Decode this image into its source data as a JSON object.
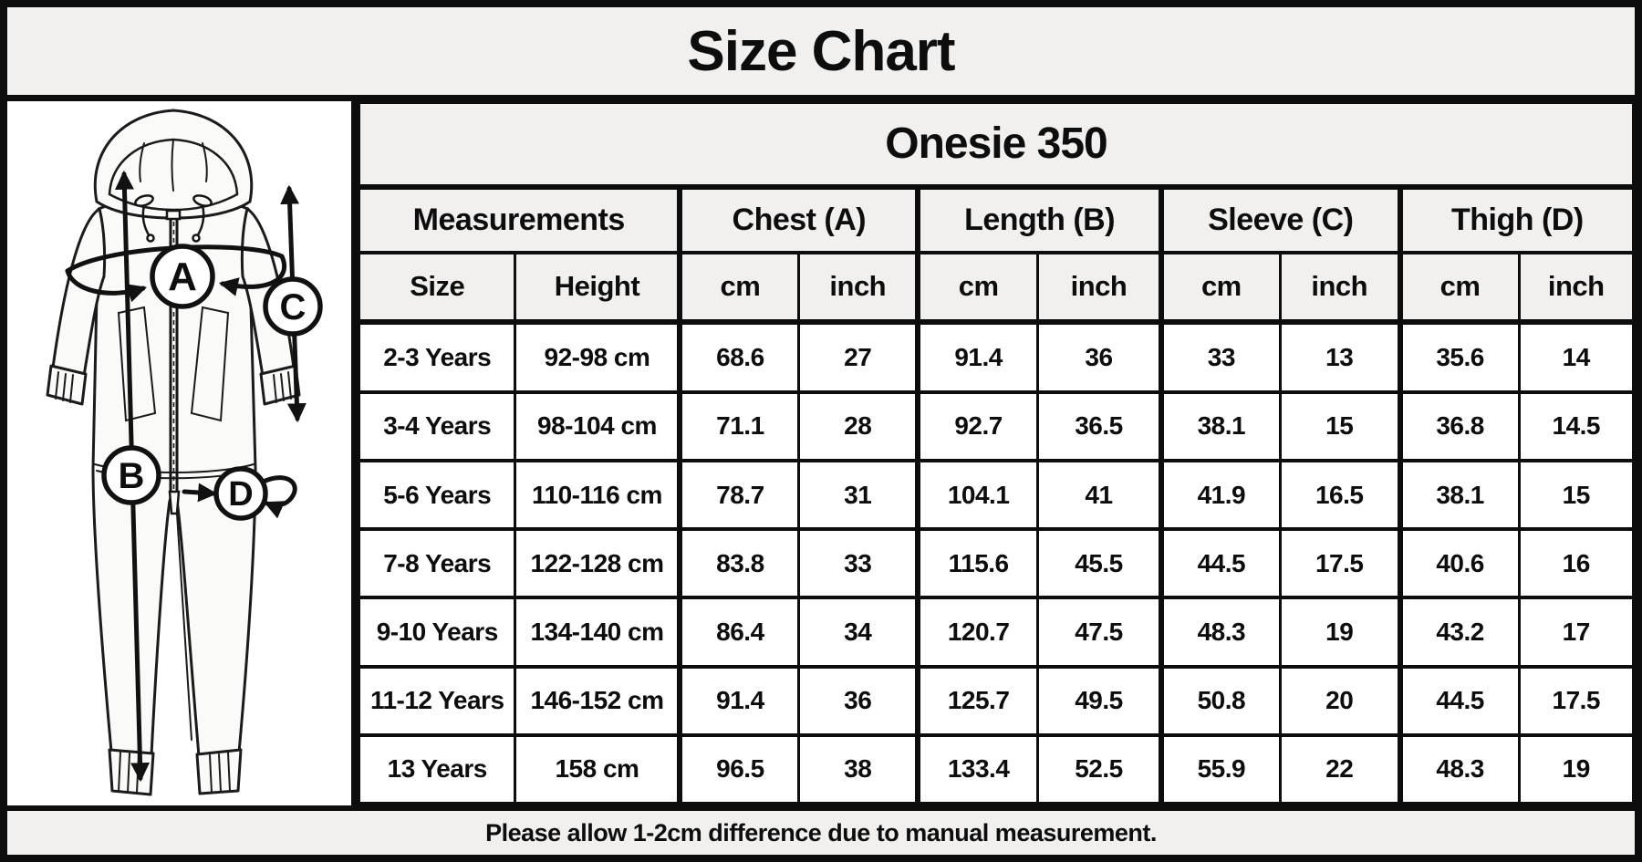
{
  "title": "Size Chart",
  "product_title": "Onesie 350",
  "footer_note": "Please allow 1-2cm difference due to manual measurement.",
  "diagram": {
    "labels": {
      "a": "A",
      "b": "B",
      "c": "C",
      "d": "D"
    }
  },
  "table": {
    "groups": [
      "Measurements",
      "Chest (A)",
      "Length (B)",
      "Sleeve (C)",
      "Thigh (D)"
    ],
    "columns": [
      "Size",
      "Height",
      "cm",
      "inch",
      "cm",
      "inch",
      "cm",
      "inch",
      "cm",
      "inch"
    ],
    "rows": [
      [
        "2-3 Years",
        "92-98 cm",
        "68.6",
        "27",
        "91.4",
        "36",
        "33",
        "13",
        "35.6",
        "14"
      ],
      [
        "3-4 Years",
        "98-104 cm",
        "71.1",
        "28",
        "92.7",
        "36.5",
        "38.1",
        "15",
        "36.8",
        "14.5"
      ],
      [
        "5-6 Years",
        "110-116 cm",
        "78.7",
        "31",
        "104.1",
        "41",
        "41.9",
        "16.5",
        "38.1",
        "15"
      ],
      [
        "7-8 Years",
        "122-128 cm",
        "83.8",
        "33",
        "115.6",
        "45.5",
        "44.5",
        "17.5",
        "40.6",
        "16"
      ],
      [
        "9-10 Years",
        "134-140 cm",
        "86.4",
        "34",
        "120.7",
        "47.5",
        "48.3",
        "19",
        "43.2",
        "17"
      ],
      [
        "11-12 Years",
        "146-152 cm",
        "91.4",
        "36",
        "125.7",
        "49.5",
        "50.8",
        "20",
        "44.5",
        "17.5"
      ],
      [
        "13 Years",
        "158 cm",
        "96.5",
        "38",
        "133.4",
        "52.5",
        "55.9",
        "22",
        "48.3",
        "19"
      ]
    ]
  },
  "colors": {
    "header_bg": "#f1f0ee",
    "border": "#0d0d0d",
    "cell_bg": "#ffffff"
  }
}
